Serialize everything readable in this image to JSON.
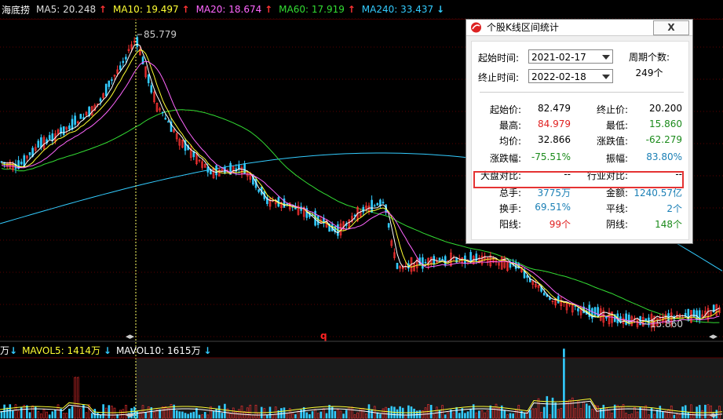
{
  "top_bar": {
    "stock_name": "海底捞",
    "indicators": [
      {
        "label": "MA5:",
        "value": "20.248",
        "arrow": "↑",
        "color": "#ffffff",
        "arrow_dir": "up"
      },
      {
        "label": "MA10:",
        "value": "19.497",
        "arrow": "↑",
        "color": "#ffff33",
        "arrow_dir": "up"
      },
      {
        "label": "MA20:",
        "value": "18.674",
        "arrow": "↑",
        "color": "#ff66ff",
        "arrow_dir": "up"
      },
      {
        "label": "MA60:",
        "value": "17.919",
        "arrow": "↑",
        "color": "#33dd33",
        "arrow_dir": "up"
      },
      {
        "label": "MA240:",
        "value": "33.437",
        "arrow": "↓",
        "color": "#33ccff",
        "arrow_dir": "down"
      }
    ]
  },
  "chart": {
    "high_label": "85.779",
    "low_label": "15.860",
    "marker_q": "q",
    "colors": {
      "up": "#ff3333",
      "down": "#33ccff",
      "ma5": "#ffffff",
      "ma10": "#ffff33",
      "ma20": "#ff66ff",
      "ma60": "#33dd33",
      "ma240": "#33ccff",
      "grid": "#5a0000"
    }
  },
  "vol_bar": {
    "unit_prefix": "万",
    "unit_arrow": "↓",
    "items": [
      {
        "label": "MAVOL5:",
        "value": "1414万",
        "arrow": "↓",
        "color": "#ffff33"
      },
      {
        "label": "MAVOL10:",
        "value": "1615万",
        "arrow": "↓",
        "color": "#ffffff"
      }
    ]
  },
  "dialog": {
    "title": "个股K线区间统计",
    "close_label": "X",
    "start_label": "起始时间:",
    "start_value": "2021-02-17",
    "end_label": "终止时间:",
    "end_value": "2022-02-18",
    "period_label": "周期个数:",
    "period_value": "249个",
    "rows": [
      {
        "l1": "起始价:",
        "v1": "82.479",
        "c1": "",
        "l2": "终止价:",
        "v2": "20.200",
        "c2": ""
      },
      {
        "l1": "最高:",
        "v1": "84.979",
        "c1": "red",
        "l2": "最低:",
        "v2": "15.860",
        "c2": "green"
      },
      {
        "l1": "均价:",
        "v1": "32.866",
        "c1": "",
        "l2": "涨跌值:",
        "v2": "-62.279",
        "c2": "green"
      },
      {
        "l1": "涨跌幅:",
        "v1": "-75.51%",
        "c1": "green",
        "l2": "振幅:",
        "v2": "83.80%",
        "c2": "blue"
      },
      {
        "l1": "大盘对比:",
        "v1": "--",
        "c1": "",
        "l2": "行业对比:",
        "v2": "--",
        "c2": ""
      },
      {
        "l1": "总手:",
        "v1": "3775万",
        "c1": "blue",
        "l2": "金额:",
        "v2": "1240.57亿",
        "c2": "blue"
      },
      {
        "l1": "换手:",
        "v1": "69.51%",
        "c1": "blue",
        "l2": "平线:",
        "v2": "2个",
        "c2": "blue"
      },
      {
        "l1": "阳线:",
        "v1": "99个",
        "c1": "red",
        "l2": "阴线:",
        "v2": "148个",
        "c2": "green"
      }
    ]
  }
}
